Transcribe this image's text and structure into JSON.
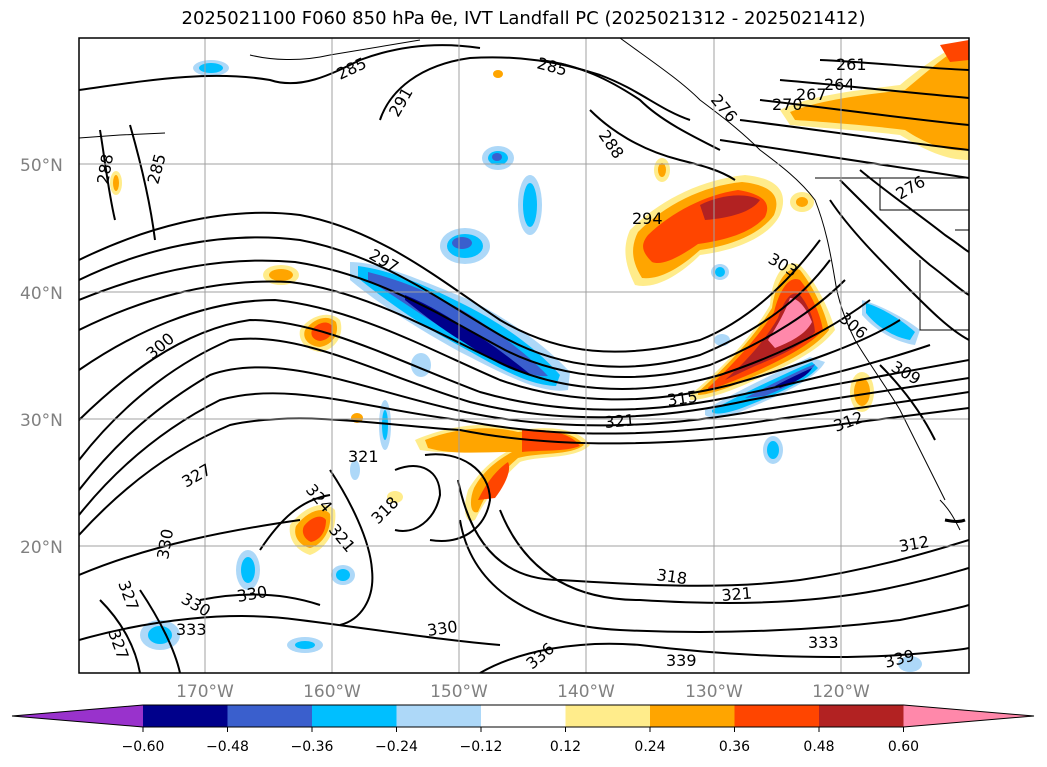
{
  "title": "2025021100 F060 850 hPa θe, IVT Landfall PC (2025021312 - 2025021412)",
  "map": {
    "lat_labels": [
      "50°N",
      "40°N",
      "30°N",
      "20°N"
    ],
    "lon_labels": [
      "170°W",
      "160°W",
      "150°W",
      "140°W",
      "130°W",
      "120°W"
    ],
    "contour_labels": [
      "285",
      "288",
      "285",
      "291",
      "285",
      "288",
      "261",
      "264",
      "267",
      "270",
      "276",
      "294",
      "297",
      "300",
      "303",
      "306",
      "276",
      "309",
      "312",
      "315",
      "318",
      "321",
      "321",
      "324",
      "327",
      "321",
      "330",
      "330",
      "327",
      "330",
      "333",
      "330",
      "327",
      "336",
      "339",
      "339",
      "312",
      "318",
      "321",
      "333"
    ]
  },
  "colorbar": {
    "ticks": [
      "−0.60",
      "−0.48",
      "−0.36",
      "−0.24",
      "−0.12",
      "0.12",
      "0.24",
      "0.36",
      "0.48",
      "0.60"
    ],
    "colors": [
      "#9932cc",
      "#00008b",
      "#3a5fcd",
      "#00bfff",
      "#add8f8",
      "#ffffff",
      "#ffec8b",
      "#ffa500",
      "#ff4500",
      "#b22222",
      "#ff88aa"
    ]
  }
}
